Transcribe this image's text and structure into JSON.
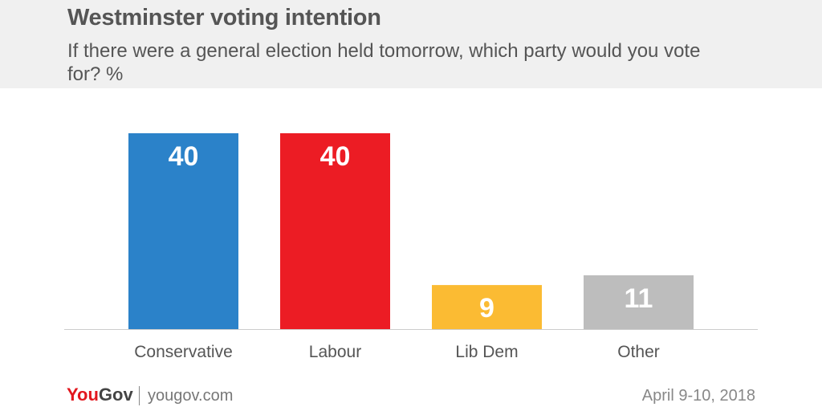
{
  "header": {
    "title": "Westminster voting intention",
    "subtitle": "If there were a general election held tomorrow, which party would you vote for? %"
  },
  "chart_data": {
    "type": "bar",
    "categories": [
      "Conservative",
      "Labour",
      "Lib Dem",
      "Other"
    ],
    "values": [
      40,
      40,
      9,
      11
    ],
    "colors": [
      "#2b82c9",
      "#ec1c24",
      "#fbbb33",
      "#bdbdbd"
    ],
    "ylim": [
      0,
      40
    ],
    "grid": false,
    "legend": "none",
    "xlabel": "",
    "ylabel": ""
  },
  "footer": {
    "logo_you": "You",
    "logo_gov": "Gov",
    "site": "yougov.com",
    "date": "April 9-10, 2018"
  }
}
